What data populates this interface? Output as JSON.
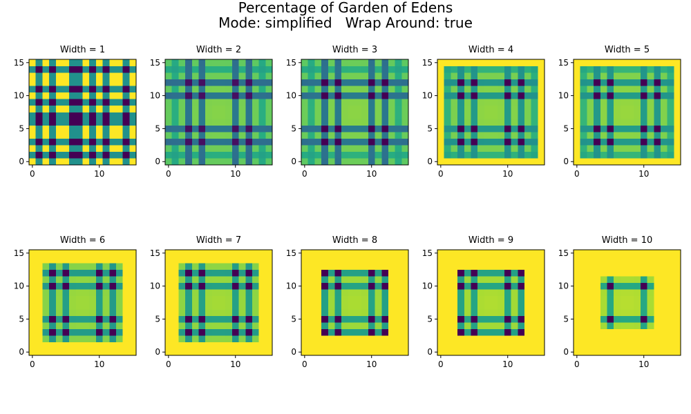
{
  "figure": {
    "title_line1": "Percentage of Garden of Edens",
    "title_line2": "Mode: simplified   Wrap Around: true"
  },
  "colors": {
    "viridis_dark": "#440154",
    "viridis_blue": "#3b528b",
    "viridis_teal": "#21918c",
    "viridis_green": "#5ec962",
    "viridis_yellow": "#fde725"
  },
  "chart_data": [
    {
      "type": "heatmap",
      "title": "Width = 1",
      "width": 1,
      "xticks": [
        "0",
        "10"
      ],
      "yticks": [
        "0",
        "5",
        "10",
        "15"
      ],
      "xlim": [
        -0.5,
        15.5
      ],
      "ylim": [
        -0.5,
        15.5
      ],
      "colormap": "viridis",
      "grid": false
    },
    {
      "type": "heatmap",
      "title": "Width = 2",
      "width": 2,
      "xticks": [
        "0",
        "10"
      ],
      "yticks": [
        "0",
        "5",
        "10",
        "15"
      ],
      "xlim": [
        -0.5,
        15.5
      ],
      "ylim": [
        -0.5,
        15.5
      ],
      "colormap": "viridis",
      "grid": false
    },
    {
      "type": "heatmap",
      "title": "Width = 3",
      "width": 3,
      "xticks": [
        "0",
        "10"
      ],
      "yticks": [
        "0",
        "5",
        "10",
        "15"
      ],
      "xlim": [
        -0.5,
        15.5
      ],
      "ylim": [
        -0.5,
        15.5
      ],
      "colormap": "viridis",
      "grid": false
    },
    {
      "type": "heatmap",
      "title": "Width = 4",
      "width": 4,
      "xticks": [
        "0",
        "10"
      ],
      "yticks": [
        "0",
        "5",
        "10",
        "15"
      ],
      "xlim": [
        -0.5,
        15.5
      ],
      "ylim": [
        -0.5,
        15.5
      ],
      "colormap": "viridis",
      "grid": false
    },
    {
      "type": "heatmap",
      "title": "Width = 5",
      "width": 5,
      "xticks": [
        "0",
        "10"
      ],
      "yticks": [
        "0",
        "5",
        "10",
        "15"
      ],
      "xlim": [
        -0.5,
        15.5
      ],
      "ylim": [
        -0.5,
        15.5
      ],
      "colormap": "viridis",
      "grid": false
    },
    {
      "type": "heatmap",
      "title": "Width = 6",
      "width": 6,
      "xticks": [
        "0",
        "10"
      ],
      "yticks": [
        "0",
        "5",
        "10",
        "15"
      ],
      "xlim": [
        -0.5,
        15.5
      ],
      "ylim": [
        -0.5,
        15.5
      ],
      "colormap": "viridis",
      "grid": false
    },
    {
      "type": "heatmap",
      "title": "Width = 7",
      "width": 7,
      "xticks": [
        "0",
        "10"
      ],
      "yticks": [
        "0",
        "5",
        "10",
        "15"
      ],
      "xlim": [
        -0.5,
        15.5
      ],
      "ylim": [
        -0.5,
        15.5
      ],
      "colormap": "viridis",
      "grid": false
    },
    {
      "type": "heatmap",
      "title": "Width = 8",
      "width": 8,
      "xticks": [
        "0",
        "10"
      ],
      "yticks": [
        "0",
        "5",
        "10",
        "15"
      ],
      "xlim": [
        -0.5,
        15.5
      ],
      "ylim": [
        -0.5,
        15.5
      ],
      "colormap": "viridis",
      "grid": false
    },
    {
      "type": "heatmap",
      "title": "Width = 9",
      "width": 9,
      "xticks": [
        "0",
        "10"
      ],
      "yticks": [
        "0",
        "5",
        "10",
        "15"
      ],
      "xlim": [
        -0.5,
        15.5
      ],
      "ylim": [
        -0.5,
        15.5
      ],
      "colormap": "viridis",
      "grid": false
    },
    {
      "type": "heatmap",
      "title": "Width = 10",
      "width": 10,
      "xticks": [
        "0",
        "10"
      ],
      "yticks": [
        "0",
        "5",
        "10",
        "15"
      ],
      "xlim": [
        -0.5,
        15.5
      ],
      "ylim": [
        -0.5,
        15.5
      ],
      "colormap": "viridis",
      "grid": false
    }
  ]
}
